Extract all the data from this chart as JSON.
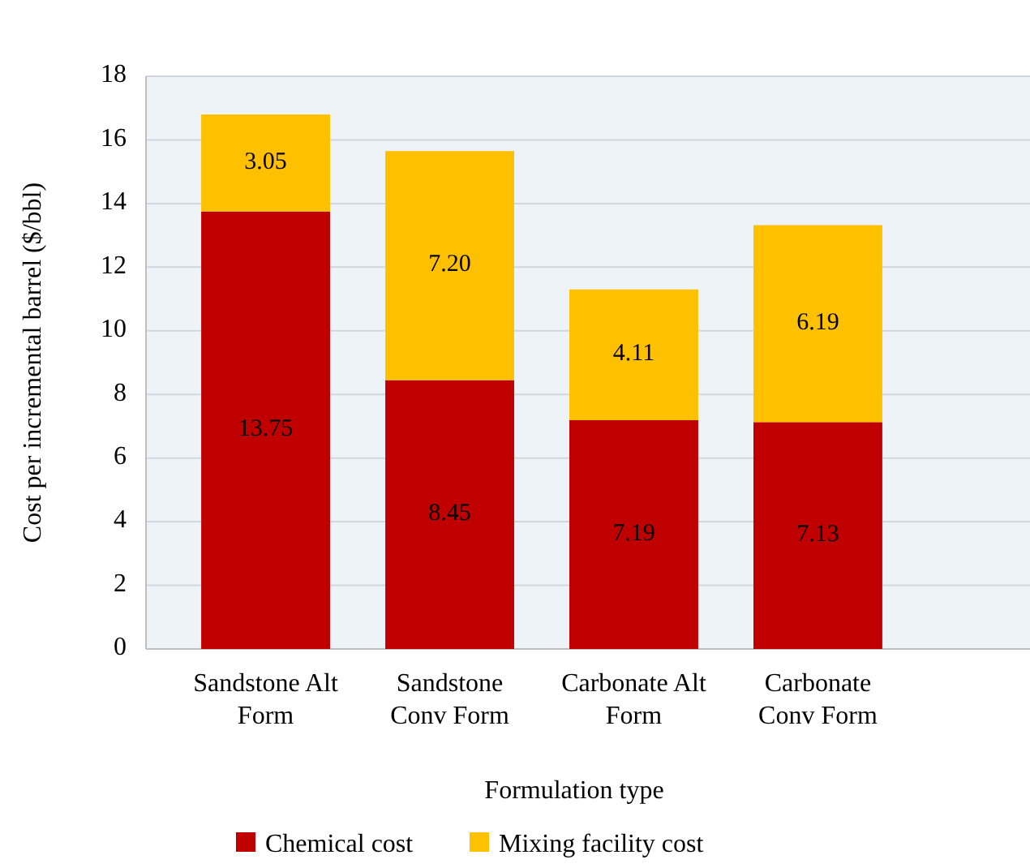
{
  "chart_data": {
    "type": "bar",
    "stacked": true,
    "xlabel": "Formulation type",
    "ylabel": "Cost per incremental barrel ($/bbl)",
    "categories": [
      "Sandstone Alt Form",
      "Sandstone Conv Form",
      "Carbonate Alt Form",
      "Carbonate Conv Form"
    ],
    "series": [
      {
        "name": "Chemical cost",
        "color": "#c00000",
        "values": [
          13.75,
          8.45,
          7.19,
          7.13
        ],
        "value_labels": [
          "13.75",
          "8.45",
          "7.19",
          "7.13"
        ]
      },
      {
        "name": "Mixing facility cost",
        "color": "#ffc000",
        "values": [
          3.05,
          7.2,
          4.11,
          6.19
        ],
        "value_labels": [
          "3.05",
          "7.20",
          "4.11",
          "6.19"
        ]
      }
    ],
    "ylim": [
      0,
      18
    ],
    "yticks": [
      0,
      2,
      4,
      6,
      8,
      10,
      12,
      14,
      16,
      18
    ],
    "grid": "y",
    "legend": "bottom"
  }
}
